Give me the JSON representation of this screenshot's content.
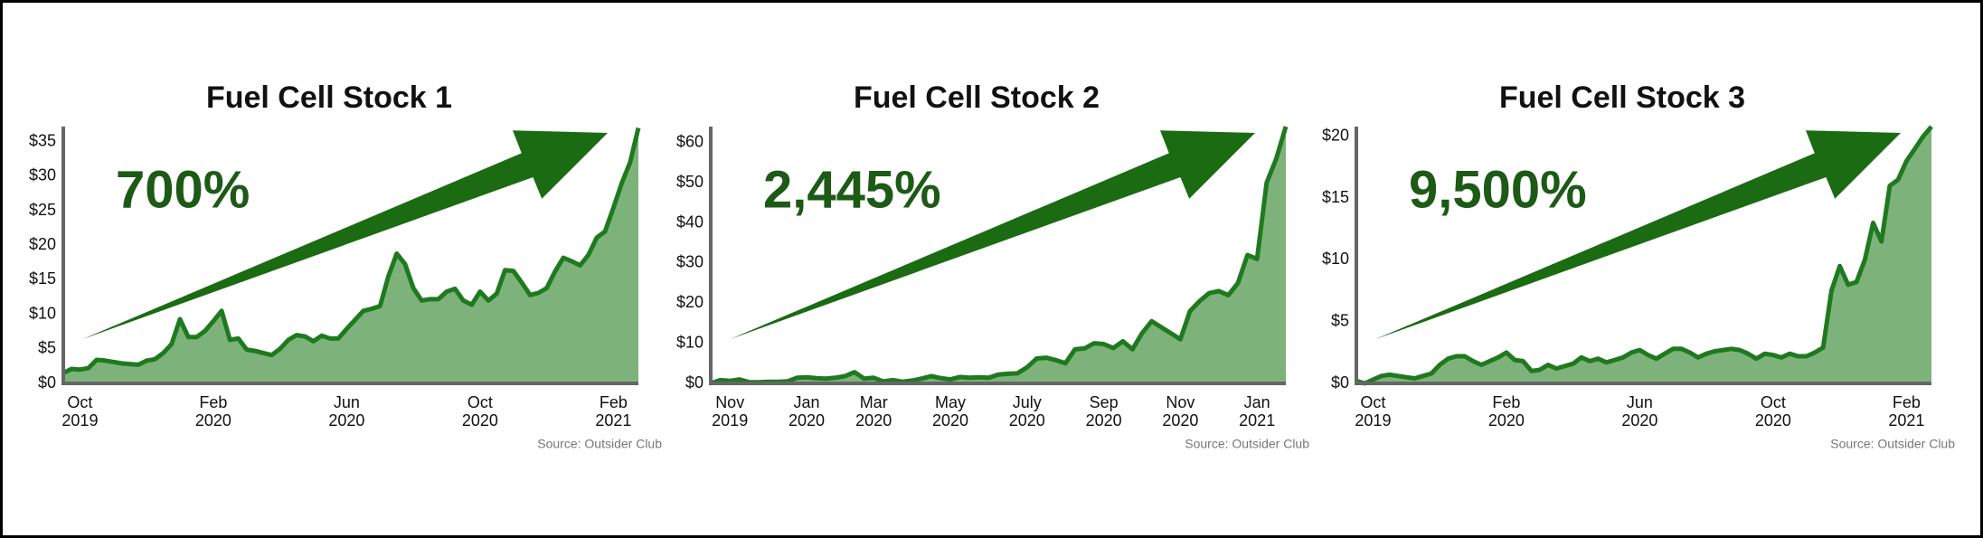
{
  "chart_data": [
    {
      "type": "area",
      "title": "Fuel Cell Stock 1",
      "annotation": "700%",
      "source": "Source: Outsider Club",
      "color": "#7db37a",
      "line_color": "#1f7a1f",
      "arrow_color": "#1a6b12",
      "categories": [
        null,
        null,
        "Oct 2019",
        null,
        null,
        null,
        null,
        null,
        null,
        null,
        null,
        null,
        null,
        null,
        null,
        null,
        null,
        null,
        "Feb 2020",
        null,
        null,
        null,
        null,
        null,
        null,
        null,
        null,
        null,
        null,
        null,
        null,
        null,
        null,
        null,
        "Jun 2020",
        null,
        null,
        null,
        null,
        null,
        null,
        null,
        null,
        null,
        null,
        null,
        null,
        null,
        null,
        null,
        "Oct 2020",
        null,
        null,
        null,
        null,
        null,
        null,
        null,
        null,
        null,
        null,
        null,
        null,
        null,
        null,
        null,
        "Feb 2021",
        null,
        null,
        null
      ],
      "values": [
        1.5,
        2.1,
        2.0,
        2.2,
        3.4,
        3.3,
        3.1,
        2.9,
        2.8,
        2.7,
        3.3,
        3.5,
        4.4,
        5.7,
        9.3,
        6.7,
        6.7,
        7.6,
        9.0,
        10.5,
        6.3,
        6.5,
        4.9,
        4.7,
        4.4,
        4.1,
        5.0,
        6.3,
        7.0,
        6.8,
        6.1,
        6.9,
        6.5,
        6.5,
        7.9,
        9.2,
        10.5,
        10.8,
        11.2,
        15.5,
        18.8,
        17.3,
        13.8,
        12.0,
        12.2,
        12.2,
        13.3,
        13.7,
        12.0,
        11.4,
        13.3,
        12.0,
        13.0,
        16.4,
        16.3,
        14.6,
        12.8,
        13.1,
        13.8,
        16.2,
        18.2,
        17.7,
        17.1,
        18.6,
        21.1,
        22,
        25.4,
        29.0,
        32,
        37
      ],
      "ylim": [
        0,
        37.2
      ],
      "yticks": [
        {
          "value": 0,
          "label": "$0"
        },
        {
          "value": 5,
          "label": "$5"
        },
        {
          "value": 10,
          "label": "$10"
        },
        {
          "value": 15,
          "label": "$15"
        },
        {
          "value": 20,
          "label": "$20"
        },
        {
          "value": 25,
          "label": "$25"
        },
        {
          "value": 30,
          "label": "$30"
        },
        {
          "value": 35,
          "label": "$35"
        }
      ]
    },
    {
      "type": "area",
      "title": "Fuel Cell Stock 2",
      "annotation": "2,445%",
      "source": "Source: Outsider Club",
      "color": "#7db37a",
      "line_color": "#1f7a1f",
      "arrow_color": "#1a6b12",
      "categories": [
        null,
        null,
        "Nov 2019",
        null,
        null,
        null,
        null,
        null,
        null,
        null,
        "Jan 2020",
        null,
        null,
        null,
        null,
        null,
        null,
        "Mar 2020",
        null,
        null,
        null,
        null,
        null,
        null,
        null,
        "May 2020",
        null,
        null,
        null,
        null,
        null,
        null,
        null,
        "July 2020",
        null,
        null,
        null,
        null,
        null,
        null,
        null,
        "Sep 2020",
        null,
        null,
        null,
        null,
        null,
        null,
        null,
        "Nov 2020",
        null,
        null,
        null,
        null,
        null,
        null,
        null,
        "Jan 2021",
        null,
        null,
        null
      ],
      "values": [
        0,
        0.8,
        0.6,
        1.0,
        0.3,
        0.3,
        0.4,
        0.4,
        0.5,
        1.4,
        1.5,
        1.3,
        1.2,
        1.4,
        1.8,
        2.8,
        1.2,
        1.4,
        0.5,
        0.8,
        0.4,
        0.7,
        1.2,
        1.8,
        1.3,
        1.0,
        1.6,
        1.4,
        1.5,
        1.4,
        2.2,
        2.4,
        2.5,
        4.0,
        6.2,
        6.4,
        5.8,
        5.0,
        8.5,
        8.7,
        10,
        9.8,
        8.8,
        10.5,
        8.5,
        12.5,
        15.5,
        14,
        12.5,
        11,
        18,
        20.5,
        22.5,
        23,
        22,
        25,
        32,
        31,
        50,
        56,
        64
      ],
      "ylim": [
        0,
        64
      ],
      "yticks": [
        {
          "value": 0,
          "label": "$0"
        },
        {
          "value": 10,
          "label": "$10"
        },
        {
          "value": 20,
          "label": "$20"
        },
        {
          "value": 30,
          "label": "$30"
        },
        {
          "value": 40,
          "label": "$40"
        },
        {
          "value": 50,
          "label": "$50"
        },
        {
          "value": 60,
          "label": "$60"
        }
      ]
    },
    {
      "type": "area",
      "title": "Fuel Cell Stock 3",
      "annotation": "9,500%",
      "source": "Source: Outsider Club",
      "color": "#7db37a",
      "line_color": "#1f7a1f",
      "arrow_color": "#1a6b12",
      "categories": [
        null,
        null,
        "Oct 2019",
        null,
        null,
        null,
        null,
        null,
        null,
        null,
        null,
        null,
        null,
        null,
        null,
        null,
        null,
        null,
        "Feb 2020",
        null,
        null,
        null,
        null,
        null,
        null,
        null,
        null,
        null,
        null,
        null,
        null,
        null,
        null,
        null,
        "Jun 2020",
        null,
        null,
        null,
        null,
        null,
        null,
        null,
        null,
        null,
        null,
        null,
        null,
        null,
        null,
        null,
        "Oct 2020",
        null,
        null,
        null,
        null,
        null,
        null,
        null,
        null,
        null,
        null,
        null,
        null,
        null,
        null,
        null,
        "Feb 2021",
        null,
        null,
        null
      ],
      "values": [
        0.2,
        0.0,
        0.3,
        0.6,
        0.7,
        0.6,
        0.5,
        0.4,
        0.6,
        0.8,
        1.5,
        2.0,
        2.2,
        2.2,
        1.8,
        1.5,
        1.8,
        2.1,
        2.5,
        1.9,
        1.8,
        1.0,
        1.1,
        1.5,
        1.2,
        1.4,
        1.6,
        2.1,
        1.8,
        2.0,
        1.7,
        1.9,
        2.1,
        2.5,
        2.7,
        2.3,
        2.0,
        2.4,
        2.8,
        2.8,
        2.5,
        2.1,
        2.4,
        2.6,
        2.7,
        2.8,
        2.7,
        2.4,
        2.0,
        2.4,
        2.3,
        2.1,
        2.4,
        2.2,
        2.2,
        2.5,
        2.9,
        7.5,
        9.5,
        8.0,
        8.2,
        10.0,
        13.0,
        11.5,
        16.0,
        16.5,
        18.0,
        19.0,
        20.0,
        20.8
      ],
      "ylim": [
        0,
        20.8
      ],
      "yticks": [
        {
          "value": 0,
          "label": "$0"
        },
        {
          "value": 5,
          "label": "$5"
        },
        {
          "value": 10,
          "label": "$10"
        },
        {
          "value": 15,
          "label": "$15"
        },
        {
          "value": 20,
          "label": "$20"
        }
      ]
    }
  ]
}
